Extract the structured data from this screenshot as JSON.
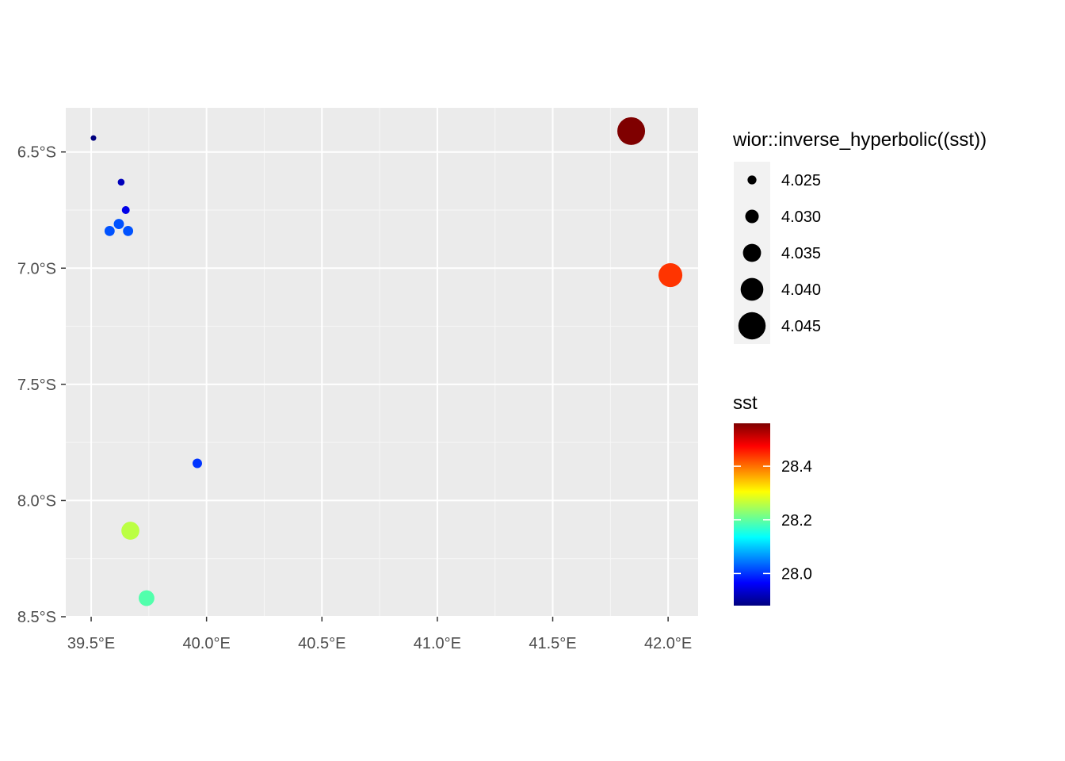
{
  "chart_data": {
    "type": "scatter",
    "title": "",
    "xlabel": "",
    "ylabel": "",
    "x_ticks": [
      39.5,
      40.0,
      40.5,
      41.0,
      41.5,
      42.0
    ],
    "x_tick_labels": [
      "39.5°E",
      "40.0°E",
      "40.5°E",
      "41.0°E",
      "41.5°E",
      "42.0°E"
    ],
    "y_ticks": [
      -6.5,
      -7.0,
      -7.5,
      -8.0,
      -8.5
    ],
    "y_tick_labels": [
      "6.5°S",
      "7.0°S",
      "7.5°S",
      "8.0°S",
      "8.5°S"
    ],
    "xlim": [
      39.39,
      42.13
    ],
    "ylim": [
      -8.5,
      -6.31
    ],
    "grid": true,
    "points": [
      {
        "lon": 39.51,
        "lat": -6.44,
        "sst": 27.88
      },
      {
        "lon": 39.63,
        "lat": -6.63,
        "sst": 27.92
      },
      {
        "lon": 39.65,
        "lat": -6.75,
        "sst": 27.95
      },
      {
        "lon": 39.62,
        "lat": -6.81,
        "sst": 28.02
      },
      {
        "lon": 39.58,
        "lat": -6.84,
        "sst": 28.02
      },
      {
        "lon": 39.66,
        "lat": -6.84,
        "sst": 28.02
      },
      {
        "lon": 39.96,
        "lat": -7.84,
        "sst": 28.0
      },
      {
        "lon": 39.67,
        "lat": -8.13,
        "sst": 28.26
      },
      {
        "lon": 39.74,
        "lat": -8.42,
        "sst": 28.19
      },
      {
        "lon": 41.84,
        "lat": -6.41,
        "sst": 28.56
      },
      {
        "lon": 42.01,
        "lat": -7.03,
        "sst": 28.44
      }
    ],
    "size_legend": {
      "title": "wior::inverse_hyperbolic((sst))",
      "values": [
        4.025,
        4.03,
        4.035,
        4.04,
        4.045
      ],
      "labels": [
        "4.025",
        "4.030",
        "4.035",
        "4.040",
        "4.045"
      ]
    },
    "color_legend": {
      "title": "sst",
      "range": [
        27.88,
        28.56
      ],
      "ticks": [
        28.0,
        28.2,
        28.4
      ],
      "tick_labels": [
        "28.0",
        "28.2",
        "28.4"
      ],
      "palette": [
        "#00007F",
        "#0000FF",
        "#007FFF",
        "#00FFFF",
        "#7FFF7F",
        "#FFFF00",
        "#FF7F00",
        "#FF0000",
        "#7F0000"
      ]
    }
  }
}
